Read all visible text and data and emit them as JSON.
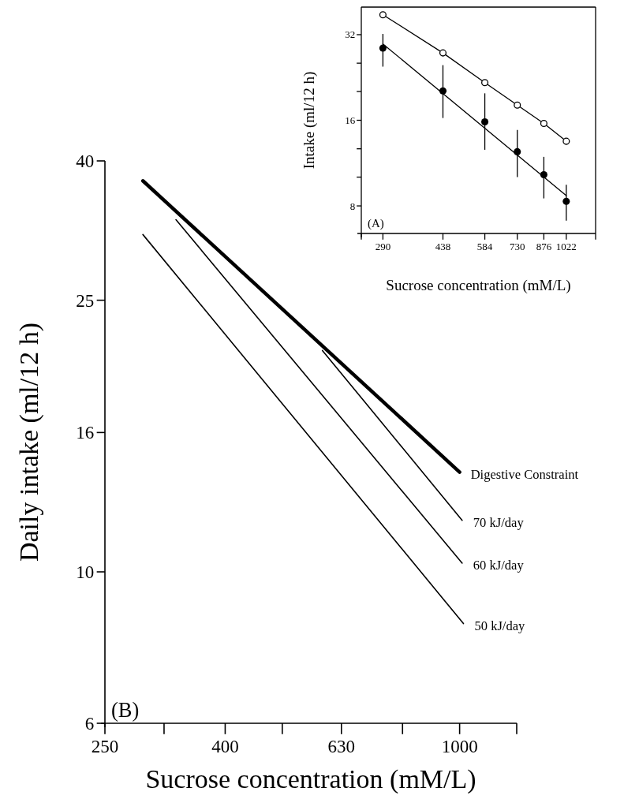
{
  "chart_data": [
    {
      "type": "line",
      "xlabel": "Sucrose concentration (mM/L)",
      "ylabel": "Intake (ml/12 h)",
      "log": "xy",
      "xlim": [
        250,
        1250
      ],
      "ylim": [
        6.4,
        40
      ],
      "xticks": [
        {
          "value": 250,
          "label": null
        },
        290,
        438,
        584,
        730,
        876,
        1022,
        {
          "value": 1250,
          "label": null
        }
      ],
      "yticks": [
        8,
        {
          "value": 10.1,
          "label": null
        },
        {
          "value": 12.7,
          "label": null
        },
        16,
        {
          "value": 20.2,
          "label": null
        },
        {
          "value": 25.4,
          "label": null
        },
        32
      ],
      "annotations": [
        "(A)"
      ],
      "grid": false,
      "series": [
        {
          "marker": "circle",
          "color": "#000000",
          "x": [
            290,
            438,
            584,
            730,
            876,
            1022
          ],
          "values": [
            37.6,
            27.6,
            21.7,
            18.1,
            15.6,
            13.5
          ]
        },
        {
          "type": "scatter",
          "marker": "circle",
          "color": "#000000",
          "x": [
            290,
            438,
            584,
            730,
            876,
            1022
          ],
          "values": [
            28.7,
            20.3,
            15.8,
            12.4,
            10.3,
            8.3
          ],
          "errors": [
            [
              24.7,
              32.2
            ],
            [
              16.3,
              25.0
            ],
            [
              12.6,
              19.9
            ],
            [
              10.1,
              14.8
            ],
            [
              8.5,
              11.9
            ],
            [
              7.1,
              9.5
            ]
          ]
        },
        {
          "marker": "none",
          "color": "#000000",
          "x": [
            290,
            1022
          ],
          "values": [
            29.7,
            8.7
          ]
        }
      ]
    },
    {
      "type": "line",
      "xlabel": "Sucrose concentration (mM/L)",
      "ylabel": "Daily intake (ml/12 h)",
      "log": "xy",
      "xlim": [
        250,
        1250
      ],
      "ylim": [
        6,
        40
      ],
      "xticks": [
        250,
        {
          "value": 315,
          "label": null
        },
        400,
        {
          "value": 500,
          "label": null
        },
        630,
        {
          "value": 800,
          "label": null
        },
        1000,
        {
          "value": 1250,
          "label": null
        }
      ],
      "yticks": [
        6,
        10,
        16,
        25,
        40
      ],
      "annotations": [
        "(B)"
      ],
      "grid": false,
      "series": [
        {
          "name": "Digestive Constraint",
          "color": "#000000",
          "x": [
            290,
            1000
          ],
          "values": [
            37.4,
            14.0
          ]
        },
        {
          "name": "70 kJ/day",
          "color": "#000000",
          "x": [
            585,
            1010
          ],
          "values": [
            21.1,
            11.9
          ]
        },
        {
          "name": "60 kJ/day",
          "color": "#000000",
          "x": [
            330,
            1010
          ],
          "values": [
            32.8,
            10.3
          ]
        },
        {
          "name": "50 kJ/day",
          "color": "#000000",
          "x": [
            290,
            1015
          ],
          "values": [
            31.2,
            8.4
          ]
        }
      ]
    }
  ]
}
